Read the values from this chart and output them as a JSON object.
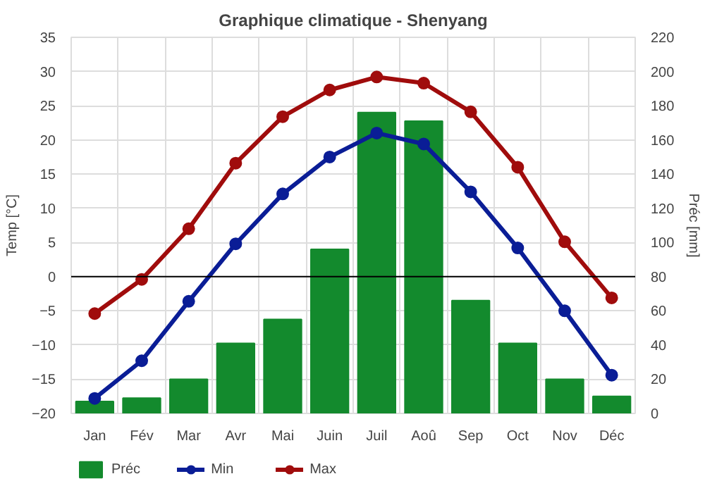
{
  "chart_data": {
    "type": "line",
    "title": "Graphique climatique - Shenyang",
    "ylabel": "Temp [°C]",
    "y2label": "Préc [mm]",
    "categories": [
      "Jan",
      "Fév",
      "Mar",
      "Avr",
      "Mai",
      "Juin",
      "Juil",
      "Aoû",
      "Sep",
      "Oct",
      "Nov",
      "Déc"
    ],
    "series": [
      {
        "name": "Préc",
        "type": "bar",
        "axis": "y2",
        "color": "#138a2d",
        "values": [
          7,
          9,
          20,
          41,
          55,
          96,
          176,
          171,
          66,
          41,
          20,
          10
        ]
      },
      {
        "name": "Min",
        "color": "#0a1d96",
        "values": [
          -17.8,
          -12.3,
          -3.6,
          4.8,
          12.1,
          17.5,
          21.0,
          19.4,
          12.4,
          4.2,
          -5.0,
          -14.4
        ]
      },
      {
        "name": "Max",
        "color": "#a00c0c",
        "values": [
          -5.4,
          -0.4,
          7.0,
          16.6,
          23.4,
          27.3,
          29.2,
          28.3,
          24.1,
          16.0,
          5.1,
          -3.1
        ]
      }
    ],
    "ylim": [
      -20,
      35
    ],
    "yticks": [
      -20,
      -15,
      -10,
      -5,
      0,
      5,
      10,
      15,
      20,
      25,
      30,
      35
    ],
    "y2lim": [
      0,
      220
    ],
    "y2ticks": [
      0,
      20,
      40,
      60,
      80,
      100,
      120,
      140,
      160,
      180,
      200,
      220
    ],
    "ref_lines": [
      {
        "axis": "y",
        "value": 0,
        "color": "#000000"
      }
    ],
    "grid": true,
    "legend": "bottom left",
    "marker": "circle"
  }
}
